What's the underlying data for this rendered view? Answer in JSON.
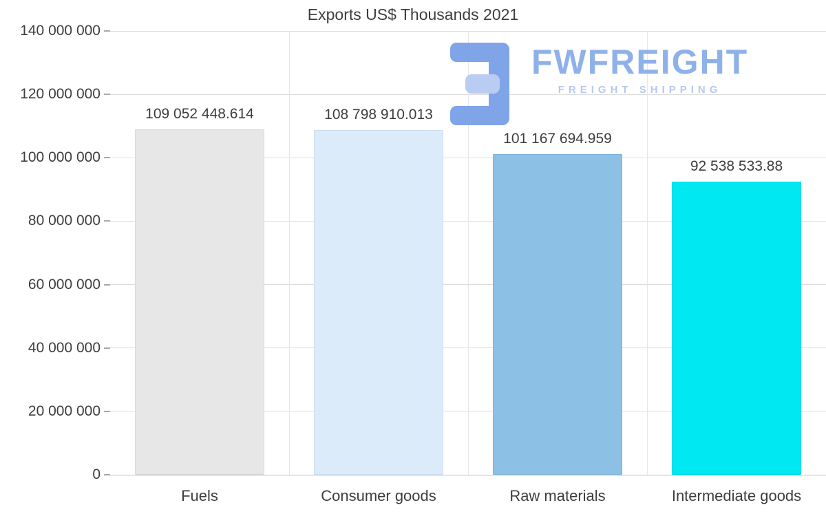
{
  "logo": {
    "brand": "FWFREIGHT",
    "tagline": "FREIGHT SHIPPING",
    "brand_color": "#8fb1e9",
    "tagline_color": "#b5c8f0",
    "icon_primary": "#7fa4e8",
    "icon_secondary": "#b9ccf2"
  },
  "chart_data": {
    "type": "bar",
    "title": "Exports US$ Thousands 2021",
    "xlabel": "",
    "ylabel": "",
    "categories": [
      "Fuels",
      "Consumer goods",
      "Raw materials",
      "Intermediate goods"
    ],
    "values": [
      109052448.614,
      108798910.013,
      101167694.959,
      92538533.88
    ],
    "value_labels": [
      "109 052 448.614",
      "108 798 910.013",
      "101 167 694.959",
      "92 538 533.88"
    ],
    "bar_colors": [
      "#e7e7e7",
      "#dcebfa",
      "#8cc0e4",
      "#00e9f2"
    ],
    "bar_border_colors": [
      "#d8d8d8",
      "#cadef2",
      "#7ab3da",
      "#00d6e0"
    ],
    "ylim": [
      0,
      140000000
    ],
    "ytick_interval": 20000000,
    "ytick_labels": [
      "0",
      "20 000 000",
      "40 000 000",
      "60 000 000",
      "80 000 000",
      "100 000 000",
      "120 000 000",
      "140 000 000"
    ],
    "grid": true,
    "legend": false,
    "text_color": "#3d3d3d"
  }
}
